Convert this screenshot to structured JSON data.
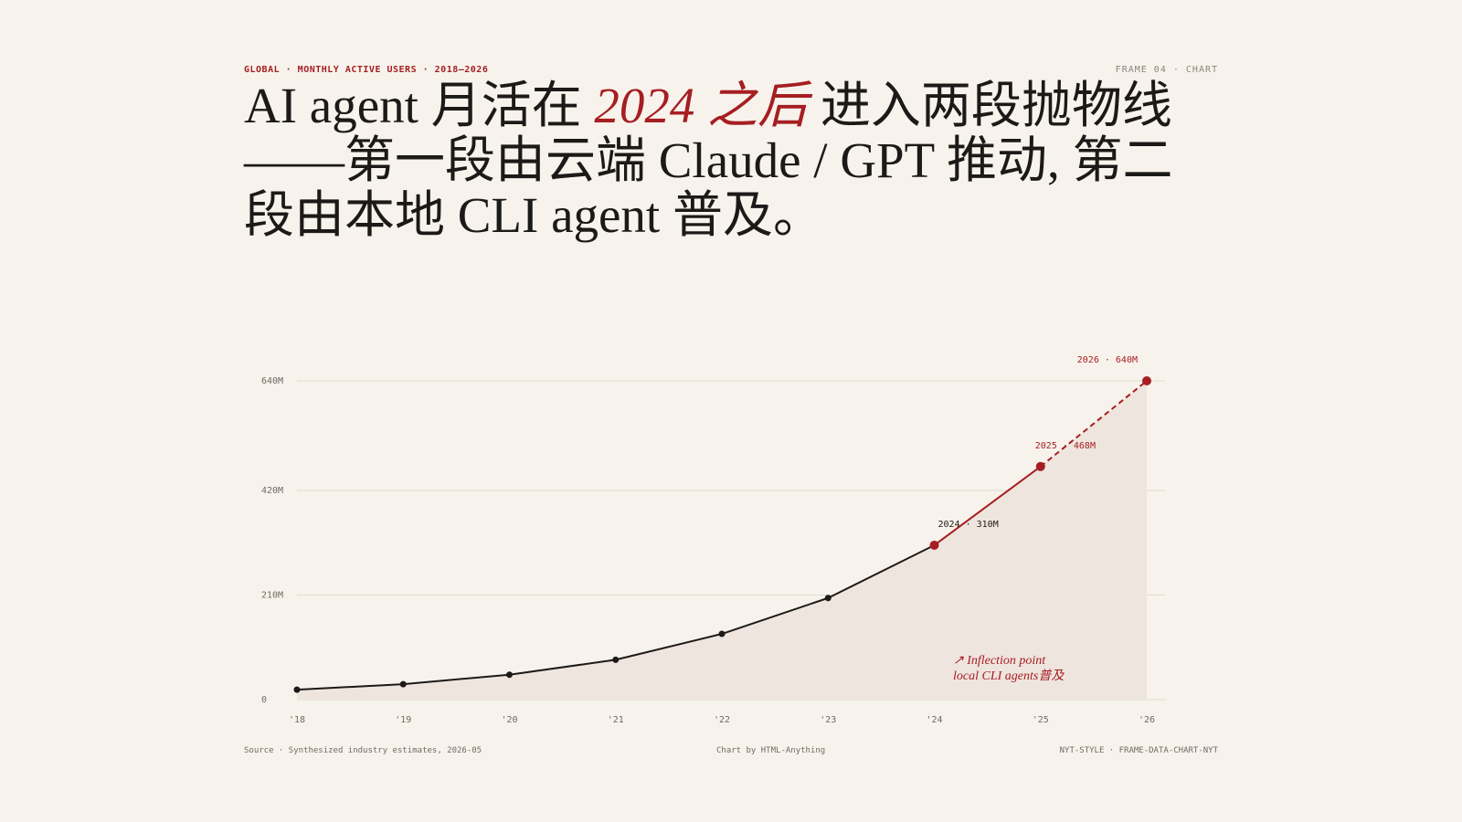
{
  "kicker": "GLOBAL · MONTHLY ACTIVE USERS · 2018–2026",
  "frame_label": "FRAME 04 · CHART",
  "title_parts": [
    "AI agent 月活在 ",
    "2024 之后",
    " 进入两段抛物线 ——第一段由云端 Claude / GPT 推动, 第二段由本地 CLI agent 普及。"
  ],
  "chart_data": {
    "type": "line",
    "x": [
      "'18",
      "'19",
      "'20",
      "'21",
      "'22",
      "'23",
      "'24",
      "'25",
      "'26"
    ],
    "values": [
      20,
      31,
      50,
      80,
      132,
      204,
      310,
      468,
      640
    ],
    "value_labels": [
      null,
      null,
      null,
      null,
      null,
      null,
      "2024 · 310M",
      "2025 · 468M",
      "2026 · 640M"
    ],
    "color": "#1c1a18",
    "accent_color": "#a61e22",
    "area_color": "#efe5df",
    "ylim": [
      0,
      640
    ],
    "yticks": [
      0,
      {
        "value": 210,
        "label": "210M"
      },
      {
        "value": 420,
        "label": "420M"
      },
      {
        "value": 640,
        "label": "640M"
      }
    ],
    "grid": true,
    "annotation": [
      "↗ Inflection point",
      "local CLI agents普及"
    ]
  },
  "footer": {
    "source": "Source · Synthesized industry estimates, 2026-05",
    "credit": "Chart by HTML-Anything",
    "tag": "NYT-STYLE · FRAME-DATA-CHART-NYT"
  }
}
